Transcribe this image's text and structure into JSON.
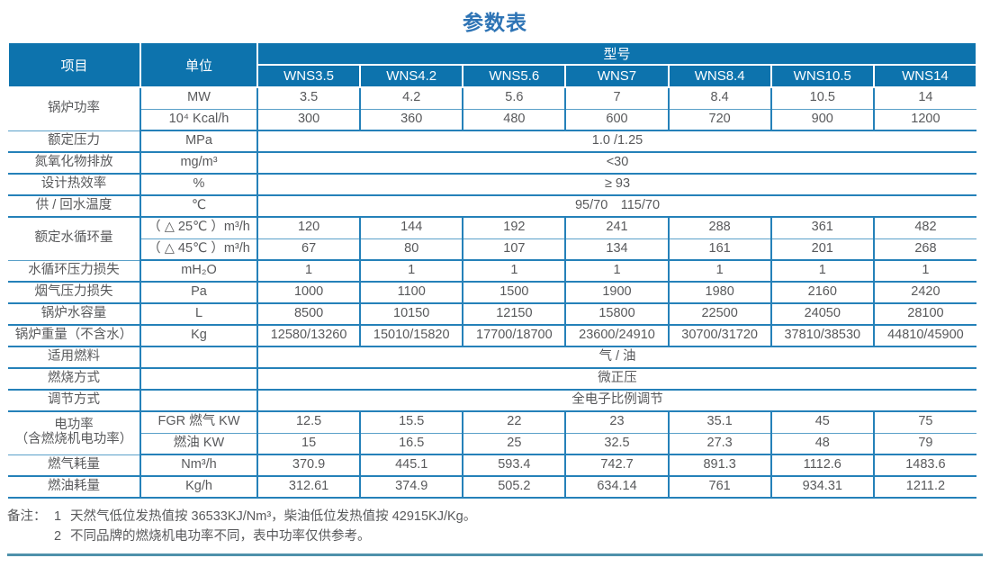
{
  "title": "参数表",
  "colors": {
    "header_bg": "#0d73ad",
    "grid_line": "#2581b9",
    "title_text": "#2e74b5",
    "body_text": "#58595b",
    "bottom_rule": "#4e91ab"
  },
  "table": {
    "header": {
      "item": "项目",
      "unit": "单位",
      "model_group": "型号",
      "models": [
        "WNS3.5",
        "WNS4.2",
        "WNS5.6",
        "WNS7",
        "WNS8.4",
        "WNS10.5",
        "WNS14"
      ]
    },
    "rows": [
      {
        "label": "锅炉功率",
        "labelRowspan": 2,
        "unit": "MW",
        "thin": true,
        "values": [
          "3.5",
          "4.2",
          "5.6",
          "7",
          "8.4",
          "10.5",
          "14"
        ]
      },
      {
        "unit": "10⁴ Kcal/h",
        "values": [
          "300",
          "360",
          "480",
          "600",
          "720",
          "900",
          "1200"
        ]
      },
      {
        "label": "额定压力",
        "unit": "MPa",
        "span": "1.0 /1.25"
      },
      {
        "label": "氮氧化物排放",
        "unit": "mg/m³",
        "span": "<30"
      },
      {
        "label": "设计热效率",
        "unit": "%",
        "span": "≥ 93"
      },
      {
        "label": "供 / 回水温度",
        "unit": "℃",
        "span": "95/70　115/70"
      },
      {
        "label": "额定水循环量",
        "labelRowspan": 2,
        "unit": "（ △ 25℃ ）m³/h",
        "thin": true,
        "values": [
          "120",
          "144",
          "192",
          "241",
          "288",
          "361",
          "482"
        ]
      },
      {
        "unit": "（ △ 45℃ ）m³/h",
        "values": [
          "67",
          "80",
          "107",
          "134",
          "161",
          "201",
          "268"
        ]
      },
      {
        "label": "水循环压力损失",
        "unit": "mH₂O",
        "values": [
          "1",
          "1",
          "1",
          "1",
          "1",
          "1",
          "1"
        ]
      },
      {
        "label": "烟气压力损失",
        "unit": "Pa",
        "values": [
          "1000",
          "1100",
          "1500",
          "1900",
          "1980",
          "2160",
          "2420"
        ]
      },
      {
        "label": "锅炉水容量",
        "unit": "L",
        "values": [
          "8500",
          "10150",
          "12150",
          "15800",
          "22500",
          "24050",
          "28100"
        ]
      },
      {
        "label": "锅炉重量（不含水）",
        "unit": "Kg",
        "values": [
          "12580/13260",
          "15010/15820",
          "17700/18700",
          "23600/24910",
          "30700/31720",
          "37810/38530",
          "44810/45900"
        ]
      },
      {
        "label": "适用燃料",
        "unit": "",
        "span": "气 / 油"
      },
      {
        "label": "燃烧方式",
        "unit": "",
        "span": "微正压"
      },
      {
        "label": "调节方式",
        "unit": "",
        "span": "全电子比例调节"
      },
      {
        "label": "电功率",
        "label2": "（含燃烧机电功率）",
        "labelRowspan": 2,
        "unit": "FGR 燃气 KW",
        "thin": true,
        "values": [
          "12.5",
          "15.5",
          "22",
          "23",
          "35.1",
          "45",
          "75"
        ]
      },
      {
        "unit": "燃油 KW",
        "values": [
          "15",
          "16.5",
          "25",
          "32.5",
          "27.3",
          "48",
          "79"
        ]
      },
      {
        "label": "燃气耗量",
        "unit": "Nm³/h",
        "values": [
          "370.9",
          "445.1",
          "593.4",
          "742.7",
          "891.3",
          "1112.6",
          "1483.6"
        ]
      },
      {
        "label": "燃油耗量",
        "unit": "Kg/h",
        "values": [
          "312.61",
          "374.9",
          "505.2",
          "634.14",
          "761",
          "934.31",
          "1211.2"
        ]
      }
    ]
  },
  "notes": {
    "prefix": "备注：",
    "items": [
      {
        "num": "1",
        "text": "天然气低位发热值按 36533KJ/Nm³，柴油低位发热值按 42915KJ/Kg。"
      },
      {
        "num": "2",
        "text": "不同品牌的燃烧机电功率不同，表中功率仅供参考。"
      }
    ]
  }
}
